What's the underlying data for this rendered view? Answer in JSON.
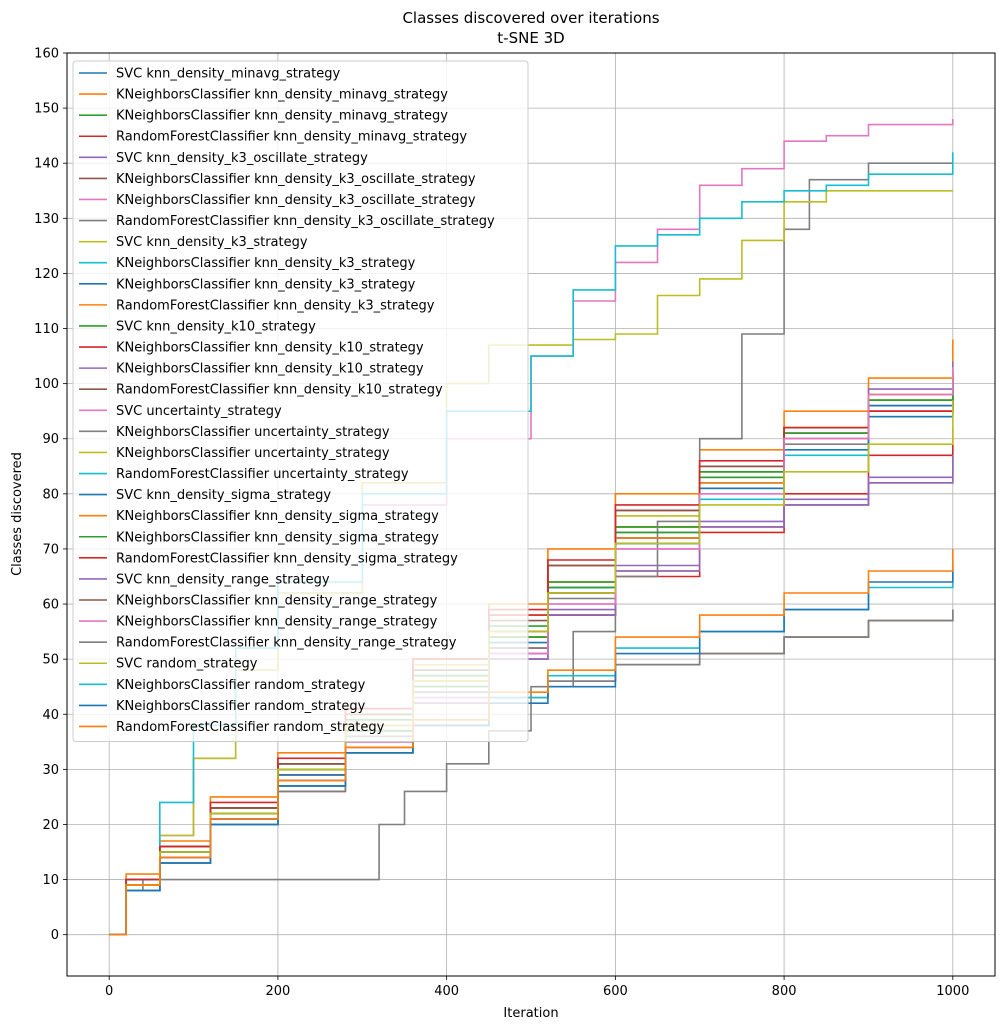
{
  "chart_data": {
    "type": "line",
    "title": "Classes discovered over iterations",
    "subtitle": "t-SNE 3D",
    "xlabel": "Iteration",
    "ylabel": "Classes discovered",
    "xlim": [
      -50,
      1050
    ],
    "ylim": [
      -7.5,
      160
    ],
    "xticks": [
      0,
      200,
      400,
      600,
      800,
      1000
    ],
    "yticks": [
      0,
      10,
      20,
      30,
      40,
      50,
      60,
      70,
      80,
      90,
      100,
      110,
      120,
      130,
      140,
      150,
      160
    ],
    "grid": true,
    "legend_position": "top-left",
    "series": [
      {
        "name": "SVC knn_density_minavg_strategy",
        "color": "#1f77b4",
        "x": [
          0,
          20,
          60,
          120,
          200,
          280,
          360,
          450,
          520,
          600,
          700,
          800,
          900,
          1000
        ],
        "y": [
          0,
          10,
          15,
          22,
          30,
          38,
          47,
          55,
          63,
          72,
          82,
          90,
          96,
          100
        ]
      },
      {
        "name": "KNeighborsClassifier knn_density_minavg_strategy",
        "color": "#ff7f0e",
        "x": [
          0,
          20,
          60,
          120,
          200,
          280,
          360,
          450,
          520,
          600,
          700,
          800,
          900,
          1000
        ],
        "y": [
          0,
          11,
          17,
          25,
          33,
          41,
          50,
          60,
          70,
          80,
          88,
          95,
          101,
          108
        ]
      },
      {
        "name": "KNeighborsClassifier knn_density_minavg_strategy",
        "color": "#2ca02c",
        "x": [
          0,
          20,
          60,
          120,
          200,
          280,
          360,
          450,
          520,
          600,
          700,
          800,
          900,
          1000
        ],
        "y": [
          0,
          10,
          16,
          23,
          31,
          38,
          46,
          55,
          64,
          74,
          84,
          92,
          97,
          101
        ]
      },
      {
        "name": "RandomForestClassifier knn_density_minavg_strategy",
        "color": "#d62728",
        "x": [
          0,
          20,
          60,
          120,
          200,
          280,
          360,
          450,
          520,
          600,
          700,
          800,
          900,
          1000
        ],
        "y": [
          0,
          9,
          14,
          21,
          29,
          36,
          44,
          52,
          58,
          65,
          73,
          80,
          87,
          92
        ]
      },
      {
        "name": "SVC knn_density_k3_oscillate_strategy",
        "color": "#9467bd",
        "x": [
          0,
          20,
          60,
          120,
          200,
          280,
          360,
          450,
          520,
          600,
          700,
          800,
          900,
          1000
        ],
        "y": [
          0,
          9,
          15,
          22,
          30,
          38,
          46,
          55,
          63,
          73,
          83,
          91,
          99,
          104
        ]
      },
      {
        "name": "KNeighborsClassifier knn_density_k3_oscillate_strategy",
        "color": "#8c564b",
        "x": [
          0,
          20,
          60,
          120,
          200,
          280,
          360,
          450,
          520,
          600,
          700,
          800,
          900,
          1000
        ],
        "y": [
          0,
          8,
          13,
          20,
          27,
          34,
          42,
          50,
          58,
          66,
          74,
          78,
          82,
          87
        ]
      },
      {
        "name": "KNeighborsClassifier knn_density_k3_oscillate_strategy",
        "color": "#e377c2",
        "x": [
          0,
          20,
          60,
          120,
          200,
          280,
          360,
          450,
          520,
          600,
          700,
          800,
          900,
          1000
        ],
        "y": [
          0,
          8,
          13,
          20,
          27,
          35,
          43,
          51,
          60,
          70,
          80,
          90,
          98,
          103
        ]
      },
      {
        "name": "RandomForestClassifier knn_density_k3_oscillate_strategy",
        "color": "#7f7f7f",
        "x": [
          0,
          20,
          60,
          120,
          200,
          280,
          360,
          450,
          520,
          600,
          700,
          800,
          900,
          1000
        ],
        "y": [
          0,
          9,
          14,
          21,
          28,
          36,
          44,
          52,
          61,
          71,
          81,
          89,
          96,
          101
        ]
      },
      {
        "name": "SVC knn_density_k3_strategy",
        "color": "#bcbd22",
        "x": [
          0,
          20,
          60,
          120,
          200,
          280,
          360,
          450,
          520,
          600,
          700,
          800,
          900,
          1000
        ],
        "y": [
          0,
          10,
          16,
          23,
          31,
          40,
          49,
          58,
          67,
          76,
          85,
          92,
          98,
          102
        ]
      },
      {
        "name": "KNeighborsClassifier knn_density_k3_strategy",
        "color": "#17becf",
        "x": [
          0,
          20,
          60,
          120,
          200,
          280,
          360,
          450,
          520,
          600,
          700,
          800,
          900,
          1000
        ],
        "y": [
          0,
          9,
          15,
          22,
          30,
          38,
          47,
          55,
          63,
          71,
          79,
          87,
          94,
          100
        ]
      },
      {
        "name": "KNeighborsClassifier knn_density_k3_strategy",
        "color": "#1f77b4",
        "x": [
          0,
          20,
          60,
          120,
          200,
          280,
          360,
          450,
          520,
          600,
          700,
          800,
          900,
          1000
        ],
        "y": [
          0,
          9,
          15,
          21,
          29,
          37,
          45,
          54,
          62,
          71,
          81,
          88,
          94,
          97
        ]
      },
      {
        "name": "RandomForestClassifier knn_density_k3_strategy",
        "color": "#ff7f0e",
        "x": [
          0,
          20,
          60,
          120,
          200,
          280,
          360,
          450,
          520,
          600,
          700,
          800,
          900,
          1000
        ],
        "y": [
          0,
          9,
          15,
          22,
          30,
          38,
          46,
          55,
          64,
          74,
          84,
          92,
          98,
          102
        ]
      },
      {
        "name": "SVC knn_density_k10_strategy",
        "color": "#2ca02c",
        "x": [
          0,
          20,
          60,
          120,
          200,
          280,
          360,
          450,
          520,
          600,
          700,
          800,
          900,
          1000
        ],
        "y": [
          0,
          10,
          16,
          23,
          31,
          39,
          47,
          56,
          64,
          74,
          84,
          92,
          97,
          102
        ]
      },
      {
        "name": "KNeighborsClassifier knn_density_k10_strategy",
        "color": "#d62728",
        "x": [
          0,
          20,
          60,
          120,
          200,
          280,
          360,
          450,
          520,
          600,
          700,
          800,
          900,
          1000
        ],
        "y": [
          0,
          10,
          16,
          23,
          31,
          40,
          48,
          58,
          67,
          77,
          85,
          91,
          95,
          97
        ]
      },
      {
        "name": "KNeighborsClassifier knn_density_k10_strategy",
        "color": "#9467bd",
        "x": [
          0,
          20,
          60,
          120,
          200,
          280,
          360,
          450,
          520,
          600,
          700,
          800,
          900,
          1000
        ],
        "y": [
          0,
          9,
          14,
          21,
          28,
          35,
          43,
          51,
          59,
          67,
          75,
          79,
          83,
          87
        ]
      },
      {
        "name": "RandomForestClassifier knn_density_k10_strategy",
        "color": "#8c564b",
        "x": [
          0,
          20,
          60,
          120,
          200,
          280,
          360,
          450,
          520,
          600,
          700,
          800,
          900,
          1000
        ],
        "y": [
          0,
          10,
          16,
          23,
          31,
          40,
          48,
          57,
          67,
          77,
          85,
          91,
          95,
          97
        ]
      },
      {
        "name": "SVC uncertainty_strategy",
        "color": "#e377c2",
        "x": [
          0,
          20,
          60,
          100,
          150,
          200,
          300,
          400,
          500,
          550,
          600,
          650,
          700,
          750,
          800,
          850,
          900,
          1000
        ],
        "y": [
          0,
          8,
          18,
          32,
          48,
          62,
          78,
          90,
          105,
          115,
          122,
          128,
          136,
          139,
          144,
          145,
          147,
          148
        ]
      },
      {
        "name": "KNeighborsClassifier uncertainty_strategy",
        "color": "#7f7f7f",
        "x": [
          0,
          20,
          40,
          300,
          320,
          350,
          400,
          450,
          500,
          550,
          600,
          650,
          700,
          750,
          800,
          830,
          900,
          1000
        ],
        "y": [
          0,
          8,
          10,
          10,
          20,
          26,
          31,
          37,
          45,
          55,
          65,
          75,
          90,
          109,
          128,
          137,
          140,
          140
        ]
      },
      {
        "name": "KNeighborsClassifier uncertainty_strategy",
        "color": "#bcbd22",
        "x": [
          0,
          20,
          60,
          100,
          150,
          200,
          300,
          400,
          450,
          500,
          550,
          600,
          650,
          700,
          750,
          800,
          850,
          1000
        ],
        "y": [
          0,
          9,
          18,
          32,
          48,
          62,
          82,
          100,
          107,
          107,
          108,
          109,
          116,
          119,
          126,
          133,
          135,
          135
        ]
      },
      {
        "name": "RandomForestClassifier uncertainty_strategy",
        "color": "#17becf",
        "x": [
          0,
          20,
          60,
          100,
          150,
          200,
          300,
          400,
          500,
          550,
          600,
          650,
          700,
          750,
          800,
          850,
          900,
          1000
        ],
        "y": [
          0,
          10,
          24,
          38,
          52,
          64,
          80,
          95,
          105,
          117,
          125,
          127,
          130,
          133,
          135,
          136,
          138,
          142
        ]
      },
      {
        "name": "SVC knn_density_sigma_strategy",
        "color": "#1f77b4",
        "x": [
          0,
          20,
          60,
          120,
          200,
          280,
          360,
          450,
          520,
          600,
          700,
          800,
          900,
          1000
        ],
        "y": [
          0,
          9,
          15,
          22,
          30,
          37,
          45,
          53,
          62,
          72,
          82,
          90,
          96,
          101
        ]
      },
      {
        "name": "KNeighborsClassifier knn_density_sigma_strategy",
        "color": "#ff7f0e",
        "x": [
          0,
          20,
          60,
          120,
          200,
          280,
          360,
          450,
          520,
          600,
          700,
          800,
          900,
          1000
        ],
        "y": [
          0,
          9,
          15,
          22,
          30,
          38,
          46,
          54,
          62,
          72,
          82,
          90,
          97,
          102
        ]
      },
      {
        "name": "KNeighborsClassifier knn_density_sigma_strategy",
        "color": "#2ca02c",
        "x": [
          0,
          20,
          60,
          120,
          200,
          280,
          360,
          450,
          520,
          600,
          700,
          800,
          900,
          1000
        ],
        "y": [
          0,
          9,
          15,
          22,
          30,
          37,
          45,
          54,
          63,
          73,
          83,
          91,
          97,
          101
        ]
      },
      {
        "name": "RandomForestClassifier knn_density_sigma_strategy",
        "color": "#d62728",
        "x": [
          0,
          20,
          60,
          120,
          200,
          280,
          360,
          450,
          520,
          600,
          700,
          800,
          900,
          1000
        ],
        "y": [
          0,
          10,
          16,
          24,
          32,
          41,
          50,
          59,
          68,
          78,
          86,
          92,
          95,
          97
        ]
      },
      {
        "name": "SVC knn_density_range_strategy",
        "color": "#9467bd",
        "x": [
          0,
          20,
          60,
          120,
          200,
          280,
          360,
          450,
          520,
          600,
          700,
          800,
          900,
          1000
        ],
        "y": [
          0,
          8,
          13,
          20,
          27,
          34,
          42,
          50,
          58,
          66,
          74,
          78,
          82,
          87
        ]
      },
      {
        "name": "KNeighborsClassifier knn_density_range_strategy",
        "color": "#8c564b",
        "x": [
          0,
          20,
          60,
          120,
          200,
          280,
          360,
          450,
          520,
          600,
          700,
          800,
          900,
          1000
        ],
        "y": [
          0,
          8,
          13,
          20,
          26,
          33,
          38,
          43,
          46,
          49,
          51,
          54,
          57,
          59
        ]
      },
      {
        "name": "KNeighborsClassifier knn_density_range_strategy",
        "color": "#e377c2",
        "x": [
          0,
          20,
          60,
          120,
          200,
          280,
          360,
          450,
          520,
          600,
          700,
          800,
          900,
          1000
        ],
        "y": [
          0,
          8,
          13,
          20,
          27,
          35,
          43,
          51,
          60,
          70,
          80,
          90,
          98,
          103
        ]
      },
      {
        "name": "RandomForestClassifier knn_density_range_strategy",
        "color": "#7f7f7f",
        "x": [
          0,
          20,
          60,
          120,
          200,
          280,
          360,
          450,
          520,
          600,
          700,
          800,
          900,
          1000
        ],
        "y": [
          0,
          8,
          13,
          20,
          26,
          33,
          38,
          43,
          46,
          49,
          51,
          54,
          57,
          59
        ]
      },
      {
        "name": "SVC random_strategy",
        "color": "#bcbd22",
        "x": [
          0,
          20,
          60,
          120,
          200,
          280,
          360,
          450,
          520,
          600,
          700,
          800,
          900,
          1000
        ],
        "y": [
          0,
          9,
          15,
          22,
          30,
          38,
          46,
          55,
          62,
          71,
          78,
          84,
          89,
          97
        ]
      },
      {
        "name": "KNeighborsClassifier random_strategy",
        "color": "#17becf",
        "x": [
          0,
          20,
          60,
          120,
          200,
          280,
          360,
          450,
          520,
          600,
          700,
          800,
          900,
          1000
        ],
        "y": [
          0,
          8,
          13,
          20,
          27,
          33,
          38,
          43,
          47,
          52,
          55,
          59,
          63,
          67
        ]
      },
      {
        "name": "KNeighborsClassifier random_strategy",
        "color": "#1f77b4",
        "x": [
          0,
          20,
          60,
          120,
          200,
          280,
          360,
          450,
          520,
          600,
          700,
          800,
          900,
          1000
        ],
        "y": [
          0,
          8,
          13,
          20,
          27,
          33,
          38,
          42,
          45,
          51,
          55,
          59,
          64,
          68
        ]
      },
      {
        "name": "RandomForestClassifier random_strategy",
        "color": "#ff7f0e",
        "x": [
          0,
          20,
          60,
          120,
          200,
          280,
          360,
          450,
          520,
          600,
          700,
          800,
          900,
          1000
        ],
        "y": [
          0,
          9,
          14,
          21,
          28,
          34,
          39,
          44,
          48,
          54,
          58,
          62,
          66,
          70
        ]
      }
    ]
  }
}
